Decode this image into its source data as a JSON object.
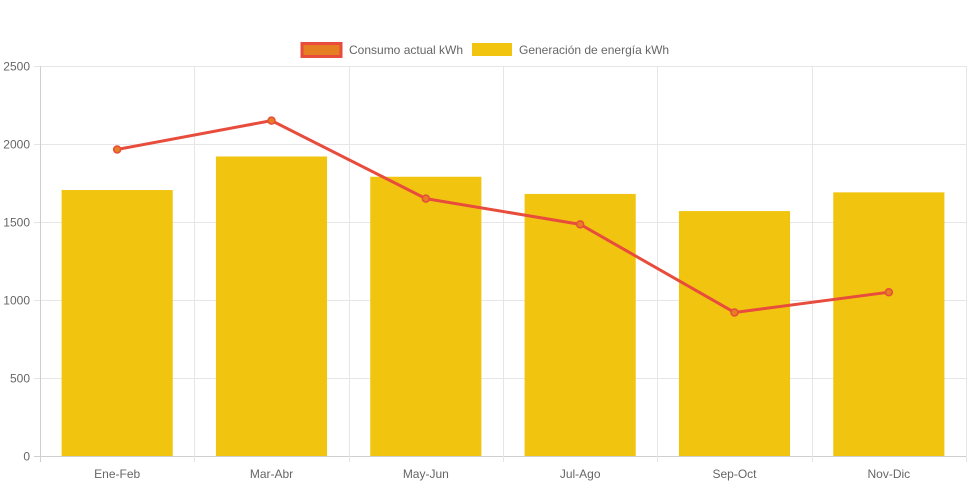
{
  "chart_data": {
    "type": "bar",
    "categories": [
      "Ene-Feb",
      "Mar-Abr",
      "May-Jun",
      "Jul-Ago",
      "Sep-Oct",
      "Nov-Dic"
    ],
    "series": [
      {
        "name": "Consumo actual kWh",
        "type": "line",
        "values": [
          1965,
          2150,
          1650,
          1485,
          920,
          1050
        ],
        "color": "#e74c3c",
        "legend_fill": "#e67e22"
      },
      {
        "name": "Generación de energía kWh",
        "type": "bar",
        "values": [
          1705,
          1920,
          1790,
          1680,
          1570,
          1690
        ],
        "color": "#f1c40f"
      }
    ],
    "y_ticks": [
      "0",
      "500",
      "1000",
      "1500",
      "2000",
      "2500"
    ],
    "ylim": [
      0,
      2500
    ],
    "grid": true,
    "legend_position": "top-center"
  }
}
